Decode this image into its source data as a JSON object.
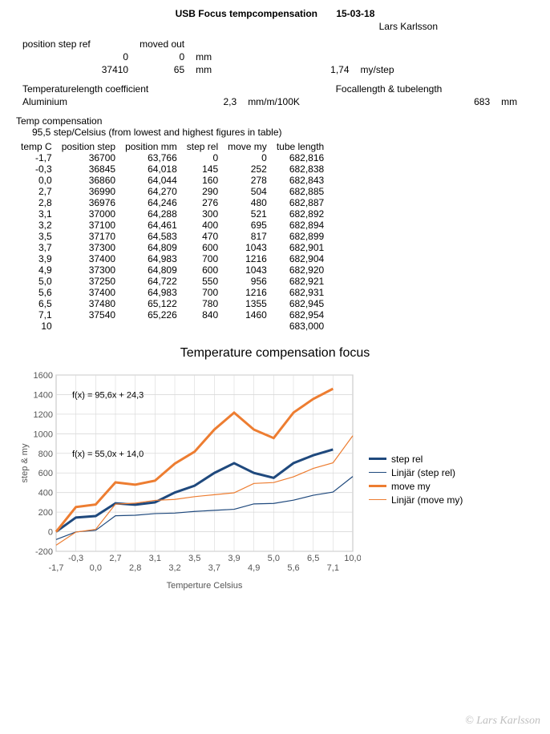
{
  "header": {
    "title": "USB Focus tempcompensation",
    "date": "15-03-18",
    "author": "Lars Karlsson"
  },
  "meta": {
    "col1_label": "position step ref",
    "col2_label": "moved out",
    "row1": {
      "a": "0",
      "b": "0",
      "unit": "mm"
    },
    "row2": {
      "a": "37410",
      "b": "65",
      "unit": "mm",
      "rate": "1,74",
      "rate_unit": "my/step"
    },
    "templen_label": "Temperaturelength coefficient",
    "material": "Aluminium",
    "coeff": "2,3",
    "coeff_unit": "mm/m/100K",
    "focal_label": "Focallength & tubelength",
    "focal_value": "683",
    "focal_unit": "mm",
    "comp_label": "Temp compensation",
    "comp_value": "95,5",
    "comp_desc": "step/Celsius (from lowest and highest figures in table)"
  },
  "table": {
    "columns": [
      "temp C",
      "position step",
      "position mm",
      "step rel",
      "move my",
      "tube length"
    ],
    "rows": [
      [
        "-1,7",
        "36700",
        "63,766",
        "0",
        "0",
        "682,816"
      ],
      [
        "-0,3",
        "36845",
        "64,018",
        "145",
        "252",
        "682,838"
      ],
      [
        "0,0",
        "36860",
        "64,044",
        "160",
        "278",
        "682,843"
      ],
      [
        "2,7",
        "36990",
        "64,270",
        "290",
        "504",
        "682,885"
      ],
      [
        "2,8",
        "36976",
        "64,246",
        "276",
        "480",
        "682,887"
      ],
      [
        "3,1",
        "37000",
        "64,288",
        "300",
        "521",
        "682,892"
      ],
      [
        "3,2",
        "37100",
        "64,461",
        "400",
        "695",
        "682,894"
      ],
      [
        "3,5",
        "37170",
        "64,583",
        "470",
        "817",
        "682,899"
      ],
      [
        "3,7",
        "37300",
        "64,809",
        "600",
        "1043",
        "682,901"
      ],
      [
        "3,9",
        "37400",
        "64,983",
        "700",
        "1216",
        "682,904"
      ],
      [
        "4,9",
        "37300",
        "64,809",
        "600",
        "1043",
        "682,920"
      ],
      [
        "5,0",
        "37250",
        "64,722",
        "550",
        "956",
        "682,921"
      ],
      [
        "5,6",
        "37400",
        "64,983",
        "700",
        "1216",
        "682,931"
      ],
      [
        "6,5",
        "37480",
        "65,122",
        "780",
        "1355",
        "682,945"
      ],
      [
        "7,1",
        "37540",
        "65,226",
        "840",
        "1460",
        "682,954"
      ],
      [
        "10",
        "",
        "",
        "",
        "",
        "683,000"
      ]
    ]
  },
  "chart": {
    "title": "Temperature compensation focus",
    "ylabel": "step & my",
    "xlabel": "Temperture Celsius",
    "ylim": [
      -200,
      1600
    ],
    "ytick_step": 200,
    "bg_color": "#ffffff",
    "grid_color": "#d9d9d9",
    "plot_border": "#888888",
    "line_width_thick": 3,
    "line_width_thin": 1.2,
    "eq1": "f(x) = 95,6x + 24,3",
    "eq2": "f(x) = 55,0x + 14,0",
    "x_categories": [
      "-1,7",
      "-0,3",
      "0,0",
      "2,7",
      "2,8",
      "3,1",
      "3,2",
      "3,5",
      "3,7",
      "3,9",
      "4,9",
      "5,0",
      "5,6",
      "6,5",
      "7,1",
      "10,0"
    ],
    "series": [
      {
        "name": "step rel",
        "color": "#1f497d",
        "thick": true,
        "values": [
          0,
          145,
          160,
          290,
          276,
          300,
          400,
          470,
          600,
          700,
          600,
          550,
          700,
          780,
          840,
          null
        ]
      },
      {
        "name": "Linjär (step rel)",
        "color": "#1f497d",
        "thick": false,
        "values": [
          -80,
          -2,
          14,
          163,
          168,
          185,
          190,
          207,
          218,
          229,
          284,
          289,
          322,
          372,
          405,
          564
        ]
      },
      {
        "name": "move my",
        "color": "#ed7d31",
        "thick": true,
        "values": [
          0,
          252,
          278,
          504,
          480,
          521,
          695,
          817,
          1043,
          1216,
          1043,
          956,
          1216,
          1355,
          1460,
          null
        ]
      },
      {
        "name": "Linjär (move my)",
        "color": "#ed7d31",
        "thick": false,
        "values": [
          -138,
          -4,
          24,
          282,
          292,
          320,
          330,
          358,
          378,
          397,
          493,
          502,
          560,
          646,
          703,
          980
        ]
      }
    ],
    "legend": [
      {
        "label": "step rel",
        "color": "#1f497d",
        "thick": true
      },
      {
        "label": "Linjär (step rel)",
        "color": "#1f497d",
        "thick": false
      },
      {
        "label": "move my",
        "color": "#ed7d31",
        "thick": true
      },
      {
        "label": "Linjär (move my)",
        "color": "#ed7d31",
        "thick": false
      }
    ]
  },
  "watermark": "© Lars Karlsson"
}
